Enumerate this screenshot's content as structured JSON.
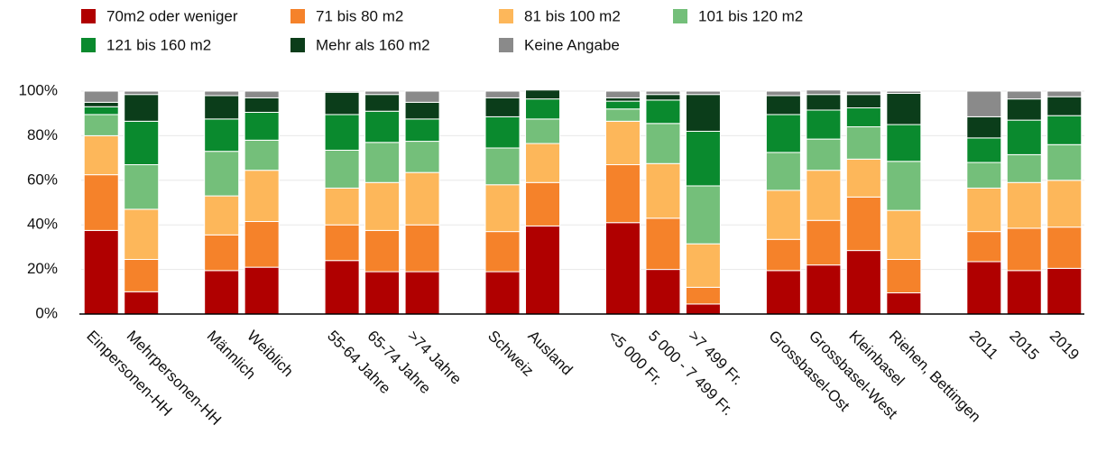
{
  "chart_data": {
    "type": "stacked_bar",
    "categories": [
      "Einpersonen-HH",
      "Mehrpersonen-HH",
      null,
      "Männlich",
      "Weiblich",
      null,
      "55-64 Jahre",
      "65-74 Jahre",
      ">74 Jahre",
      null,
      "Schweiz",
      "Ausland",
      null,
      "<5 000 Fr.",
      "5 000 - 7 499 Fr.",
      ">7 499 Fr.",
      null,
      "Grossbasel-Ost",
      "Grossbasel-West",
      "Kleinbasel",
      "Riehen, Bettingen",
      null,
      "2011",
      "2015",
      "2019"
    ],
    "series": [
      {
        "name": "70m2 oder weniger",
        "color": "#b00000",
        "values": [
          37.5,
          10,
          null,
          19.5,
          21,
          null,
          24,
          19,
          19,
          null,
          19,
          39.5,
          null,
          41,
          20,
          4.5,
          null,
          19.5,
          22,
          28.5,
          9.5,
          null,
          23.5,
          19.5,
          20.5
        ]
      },
      {
        "name": "71 bis 80 m2",
        "color": "#f5822a",
        "values": [
          25,
          14.5,
          null,
          16,
          20.5,
          null,
          16,
          18.5,
          21,
          null,
          18,
          19.5,
          null,
          26,
          23,
          7.5,
          null,
          14,
          20,
          24,
          15,
          null,
          13.5,
          19,
          18.5
        ]
      },
      {
        "name": "81 bis 100 m2",
        "color": "#fdb75a",
        "values": [
          17.5,
          22.5,
          null,
          17.5,
          23,
          null,
          16.5,
          21.5,
          23.5,
          null,
          21,
          17.5,
          null,
          19.5,
          24.5,
          19.5,
          null,
          22,
          22.5,
          17,
          22,
          null,
          19.5,
          20.5,
          21
        ]
      },
      {
        "name": "101 bis 120 m2",
        "color": "#74bf7a",
        "values": [
          9.5,
          20,
          null,
          20,
          13.5,
          null,
          17,
          18,
          14,
          null,
          16.5,
          11,
          null,
          5.5,
          18,
          26,
          null,
          17,
          14,
          14.5,
          22,
          null,
          11.5,
          12.5,
          16
        ]
      },
      {
        "name": "121 bis 160 m2",
        "color": "#0a8a2e",
        "values": [
          3.5,
          19.5,
          null,
          14.5,
          12.5,
          null,
          16,
          14,
          10,
          null,
          14,
          9,
          null,
          3.5,
          10.5,
          24.5,
          null,
          17,
          13,
          8.5,
          16.5,
          null,
          11,
          15.5,
          13
        ]
      },
      {
        "name": "Mehr als 160 m2",
        "color": "#0b3d1a",
        "values": [
          2,
          12,
          null,
          10.5,
          6.5,
          null,
          10,
          7.5,
          7.5,
          null,
          8.5,
          4,
          null,
          1.5,
          2.5,
          16.5,
          null,
          8.5,
          7,
          6,
          14,
          null,
          9.5,
          9.5,
          8.5
        ]
      },
      {
        "name": "Keine Angabe",
        "color": "#8a8a8a",
        "values": [
          5,
          1.5,
          null,
          2,
          3,
          null,
          0.5,
          1.5,
          5,
          null,
          3,
          0,
          null,
          3,
          1.5,
          1.5,
          null,
          2,
          2,
          1.5,
          1,
          null,
          11.5,
          3.5,
          2.5
        ]
      }
    ],
    "ylim": [
      0,
      100
    ],
    "yticks": [
      {
        "value": 0,
        "label": "0%"
      },
      {
        "value": 20,
        "label": "20%"
      },
      {
        "value": 40,
        "label": "40%"
      },
      {
        "value": 60,
        "label": "60%"
      },
      {
        "value": 80,
        "label": "80%"
      },
      {
        "value": 100,
        "label": "100%"
      }
    ],
    "grid": true
  }
}
